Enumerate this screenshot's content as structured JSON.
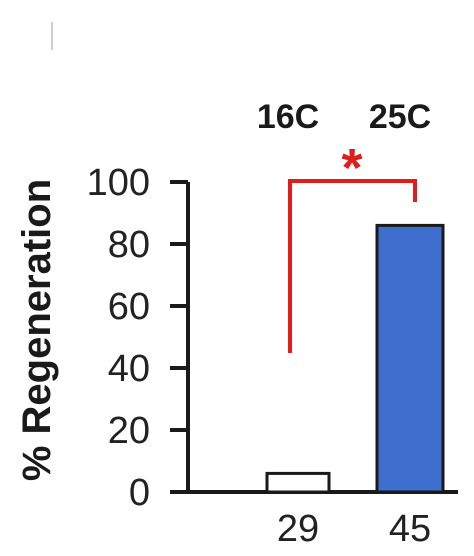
{
  "chart_data": {
    "type": "bar",
    "categories": [
      "16C",
      "25C"
    ],
    "values": [
      6,
      86
    ],
    "n_labels": [
      "29",
      "45"
    ],
    "ylabel": "% Regeneration",
    "xlabel": "",
    "title": "",
    "ylim": [
      0,
      100
    ],
    "yticks": [
      0,
      20,
      40,
      60,
      80,
      100
    ],
    "bar_colors": [
      "#ffffff",
      "#3f6fce"
    ],
    "bar_edge_color": "#1a1a1a",
    "significance": {
      "symbol": "*",
      "color": "#e21b1b",
      "between": [
        "16C",
        "25C"
      ]
    },
    "grid": false
  }
}
